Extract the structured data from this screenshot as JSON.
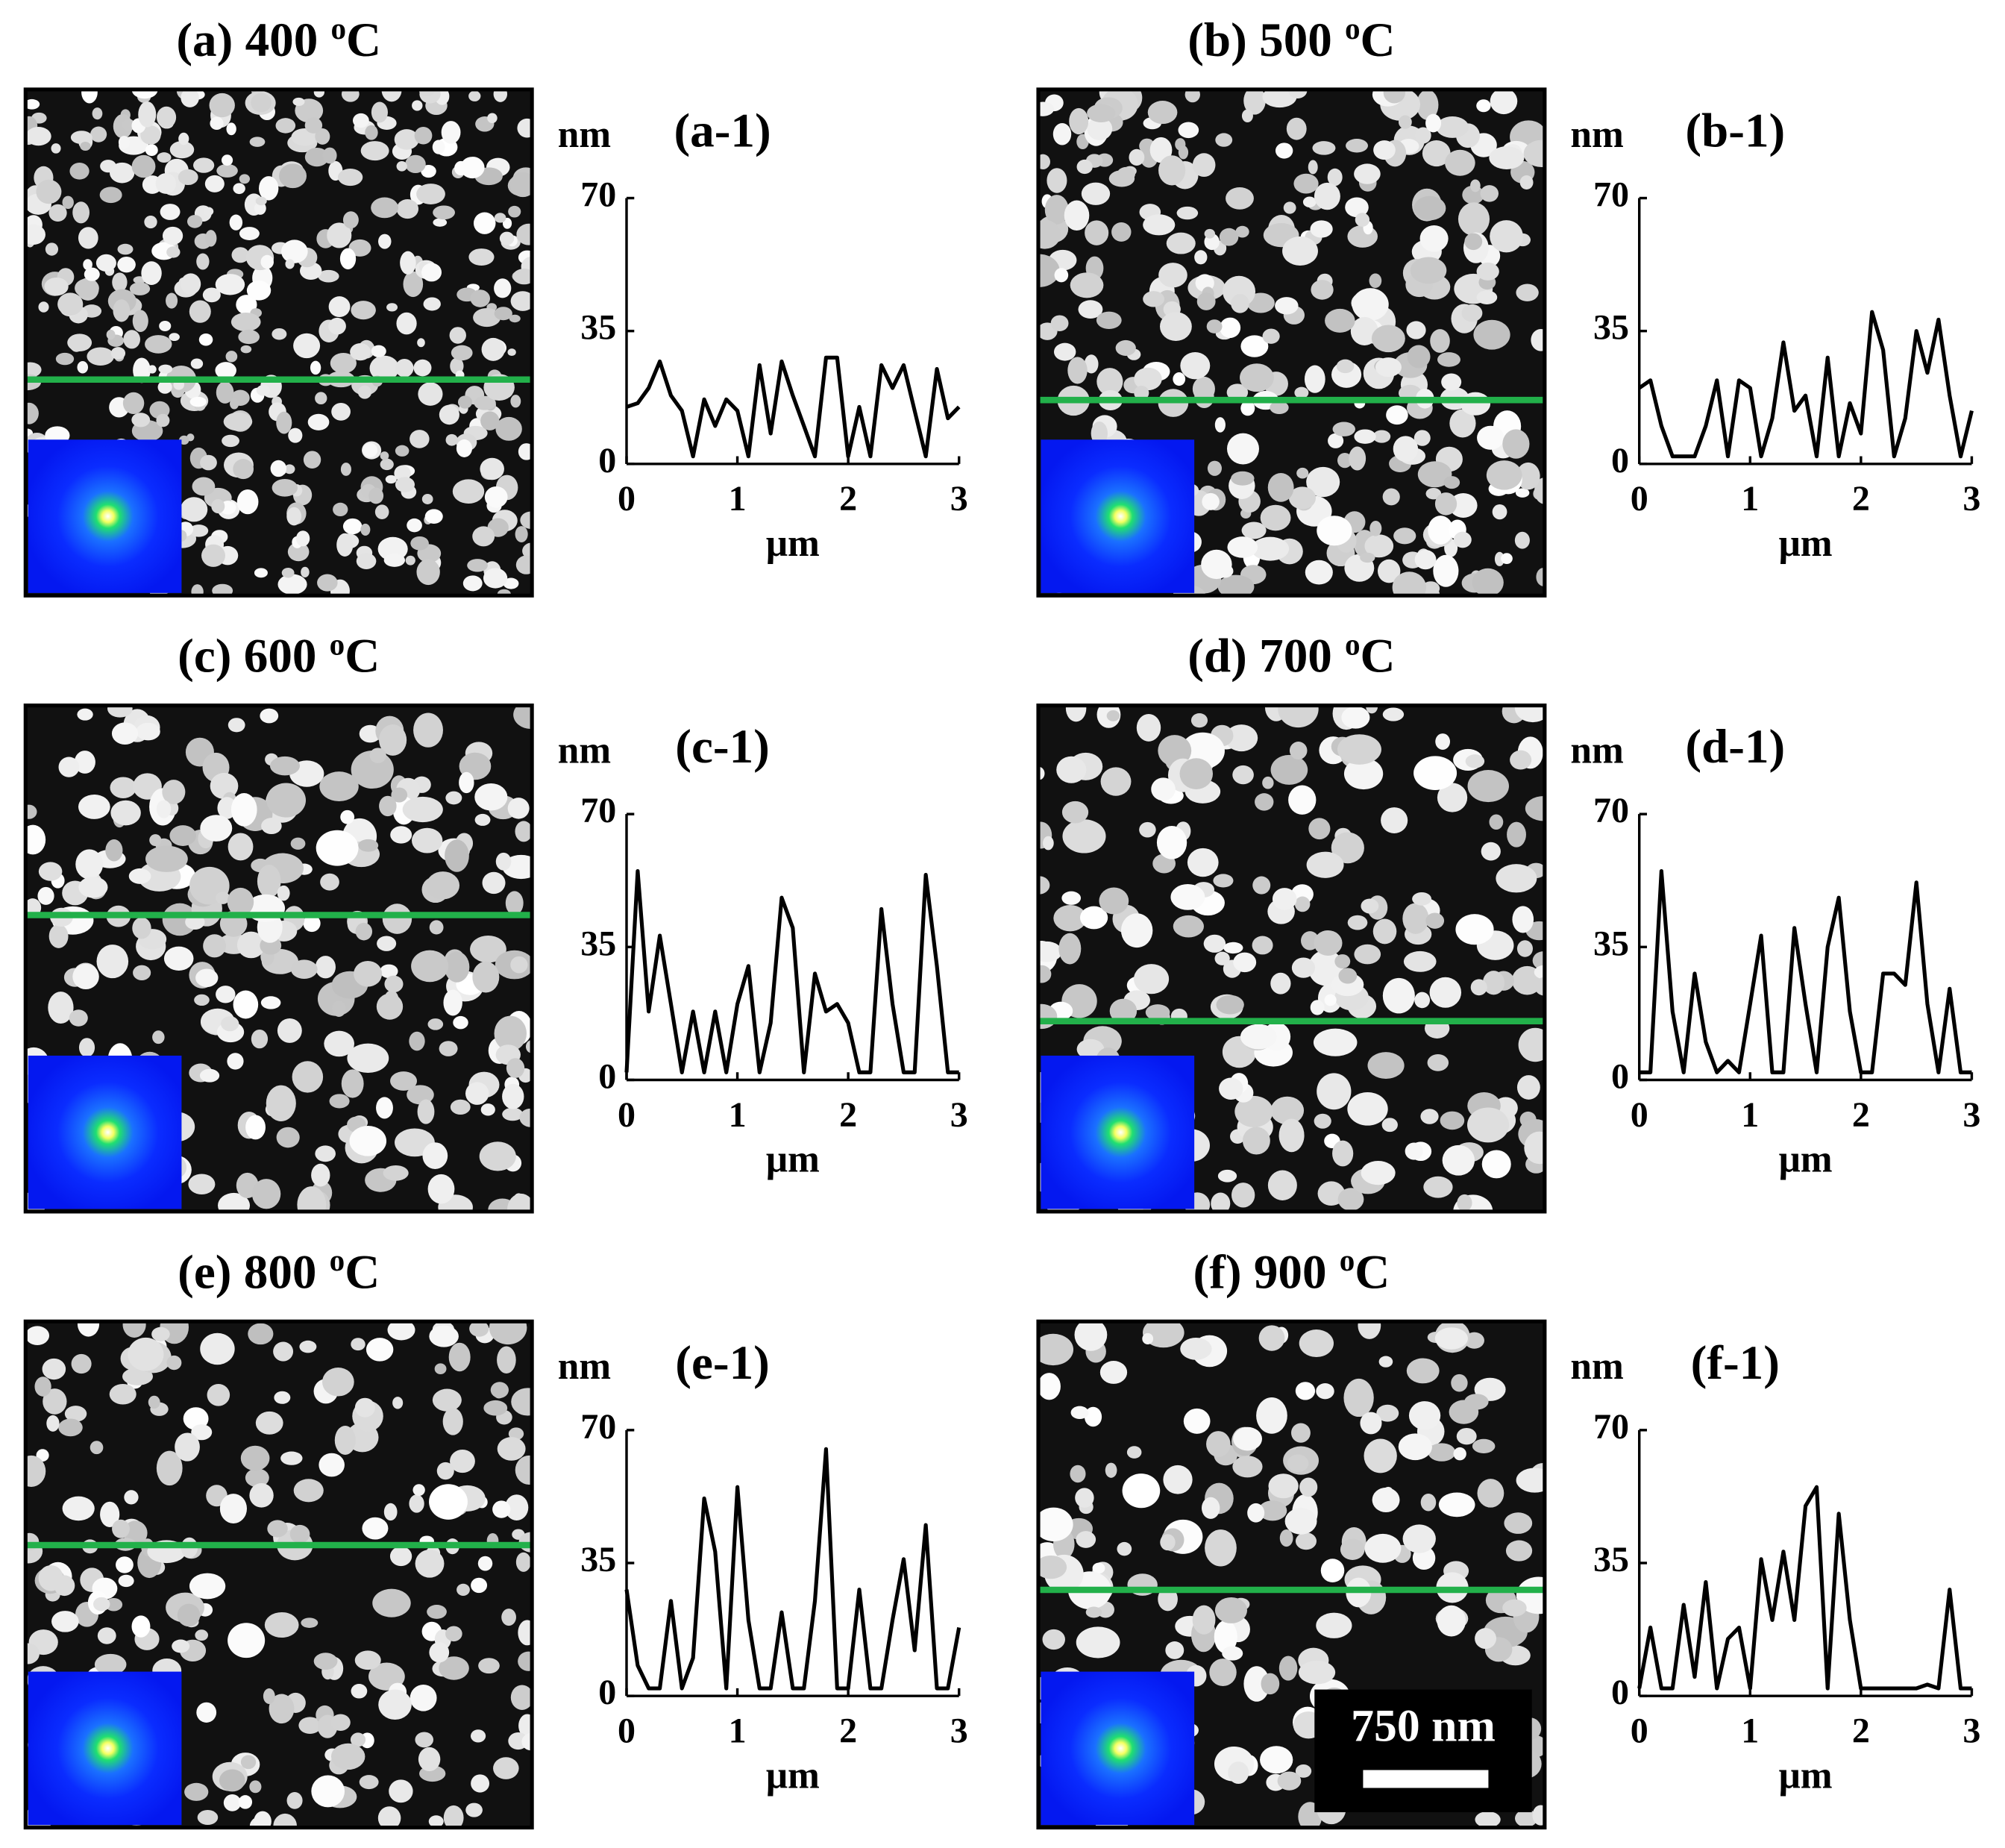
{
  "scale_bar_label": "750 nm",
  "chart_data": [
    {
      "type": "line",
      "title": "(a-1)",
      "image_title": {
        "text": "(a) 400",
        "sup": "o",
        "unit": "C"
      },
      "x_label": "μm",
      "y_label": "nm",
      "color": "#000000",
      "x": [
        0,
        0.1,
        0.2,
        0.3,
        0.4,
        0.5,
        0.6,
        0.7,
        0.8,
        0.9,
        1,
        1.1,
        1.2,
        1.3,
        1.4,
        1.5,
        1.6,
        1.7,
        1.8,
        1.9,
        2,
        2.1,
        2.2,
        2.3,
        2.4,
        2.5,
        2.6,
        2.7,
        2.8,
        2.9,
        3
      ],
      "values": [
        15,
        16,
        20,
        27,
        18,
        14,
        2,
        17,
        10,
        17,
        14,
        2,
        26,
        8,
        27,
        18,
        10,
        2,
        28,
        28,
        2,
        15,
        2,
        26,
        20,
        26,
        14,
        2,
        25,
        12,
        15
      ],
      "xlim": [
        0,
        3
      ],
      "ylim": [
        0,
        70
      ],
      "xticks": [
        0,
        1,
        2,
        3
      ],
      "yticks": [
        0,
        35,
        70
      ]
    },
    {
      "type": "line",
      "title": "(b-1)",
      "image_title": {
        "text": "(b) 500",
        "sup": "o",
        "unit": "C"
      },
      "x_label": "μm",
      "y_label": "nm",
      "color": "#000000",
      "x": [
        0,
        0.1,
        0.2,
        0.3,
        0.4,
        0.5,
        0.6,
        0.7,
        0.8,
        0.9,
        1,
        1.1,
        1.2,
        1.3,
        1.4,
        1.5,
        1.6,
        1.7,
        1.8,
        1.9,
        2,
        2.1,
        2.2,
        2.3,
        2.4,
        2.5,
        2.6,
        2.7,
        2.8,
        2.9,
        3
      ],
      "values": [
        20,
        22,
        10,
        2,
        2,
        2,
        10,
        22,
        2,
        22,
        20,
        2,
        12,
        32,
        14,
        18,
        2,
        28,
        2,
        16,
        8,
        40,
        30,
        2,
        12,
        35,
        24,
        38,
        18,
        2,
        14
      ],
      "xlim": [
        0,
        3
      ],
      "ylim": [
        0,
        70
      ],
      "xticks": [
        0,
        1,
        2,
        3
      ],
      "yticks": [
        0,
        35,
        70
      ]
    },
    {
      "type": "line",
      "title": "(c-1)",
      "image_title": {
        "text": "(c) 600",
        "sup": "o",
        "unit": "C"
      },
      "x_label": "μm",
      "y_label": "nm",
      "color": "#000000",
      "x": [
        0,
        0.1,
        0.2,
        0.3,
        0.4,
        0.5,
        0.6,
        0.7,
        0.8,
        0.9,
        1,
        1.1,
        1.2,
        1.3,
        1.4,
        1.5,
        1.6,
        1.7,
        1.8,
        1.9,
        2,
        2.1,
        2.2,
        2.3,
        2.4,
        2.5,
        2.6,
        2.7,
        2.8,
        2.9,
        3
      ],
      "values": [
        2,
        55,
        18,
        38,
        20,
        2,
        18,
        2,
        18,
        2,
        20,
        30,
        2,
        15,
        48,
        40,
        2,
        28,
        18,
        20,
        15,
        2,
        2,
        45,
        20,
        2,
        2,
        54,
        30,
        2,
        2
      ],
      "xlim": [
        0,
        3
      ],
      "ylim": [
        0,
        70
      ],
      "xticks": [
        0,
        1,
        2,
        3
      ],
      "yticks": [
        0,
        35,
        70
      ]
    },
    {
      "type": "line",
      "title": "(d-1)",
      "image_title": {
        "text": "(d) 700",
        "sup": "o",
        "unit": "C"
      },
      "x_label": "μm",
      "y_label": "nm",
      "color": "#000000",
      "x": [
        0,
        0.1,
        0.2,
        0.3,
        0.4,
        0.5,
        0.6,
        0.7,
        0.8,
        0.9,
        1,
        1.1,
        1.2,
        1.3,
        1.4,
        1.5,
        1.6,
        1.7,
        1.8,
        1.9,
        2,
        2.1,
        2.2,
        2.3,
        2.4,
        2.5,
        2.6,
        2.7,
        2.8,
        2.9,
        3
      ],
      "values": [
        2,
        2,
        55,
        18,
        2,
        28,
        10,
        2,
        5,
        2,
        20,
        38,
        2,
        2,
        40,
        20,
        2,
        35,
        48,
        18,
        2,
        2,
        28,
        28,
        25,
        52,
        20,
        2,
        24,
        2,
        2
      ],
      "xlim": [
        0,
        3
      ],
      "ylim": [
        0,
        70
      ],
      "xticks": [
        0,
        1,
        2,
        3
      ],
      "yticks": [
        0,
        35,
        70
      ]
    },
    {
      "type": "line",
      "title": "(e-1)",
      "image_title": {
        "text": "(e) 800",
        "sup": "o",
        "unit": "C"
      },
      "x_label": "μm",
      "y_label": "nm",
      "color": "#000000",
      "x": [
        0,
        0.1,
        0.2,
        0.3,
        0.4,
        0.5,
        0.6,
        0.7,
        0.8,
        0.9,
        1,
        1.1,
        1.2,
        1.3,
        1.4,
        1.5,
        1.6,
        1.7,
        1.8,
        1.9,
        2,
        2.1,
        2.2,
        2.3,
        2.4,
        2.5,
        2.6,
        2.7,
        2.8,
        2.9,
        3
      ],
      "values": [
        28,
        8,
        2,
        2,
        25,
        2,
        10,
        52,
        38,
        2,
        55,
        20,
        2,
        2,
        22,
        2,
        2,
        25,
        65,
        2,
        2,
        28,
        2,
        2,
        20,
        36,
        12,
        45,
        2,
        2,
        18
      ],
      "xlim": [
        0,
        3
      ],
      "ylim": [
        0,
        70
      ],
      "xticks": [
        0,
        1,
        2,
        3
      ],
      "yticks": [
        0,
        35,
        70
      ]
    },
    {
      "type": "line",
      "title": "(f-1)",
      "image_title": {
        "text": "(f) 900",
        "sup": "o",
        "unit": "C"
      },
      "x_label": "μm",
      "y_label": "nm",
      "color": "#000000",
      "x": [
        0,
        0.1,
        0.2,
        0.3,
        0.4,
        0.5,
        0.6,
        0.7,
        0.8,
        0.9,
        1,
        1.1,
        1.2,
        1.3,
        1.4,
        1.5,
        1.6,
        1.7,
        1.8,
        1.9,
        2,
        2.1,
        2.2,
        2.3,
        2.4,
        2.5,
        2.6,
        2.7,
        2.8,
        2.9,
        3
      ],
      "values": [
        2,
        18,
        2,
        2,
        24,
        5,
        30,
        2,
        15,
        18,
        2,
        36,
        20,
        38,
        20,
        50,
        55,
        2,
        48,
        20,
        2,
        2,
        2,
        2,
        2,
        2,
        3,
        2,
        28,
        2,
        2
      ],
      "xlim": [
        0,
        3
      ],
      "ylim": [
        0,
        70
      ],
      "xticks": [
        0,
        1,
        2,
        3
      ],
      "yticks": [
        0,
        35,
        70
      ]
    }
  ]
}
